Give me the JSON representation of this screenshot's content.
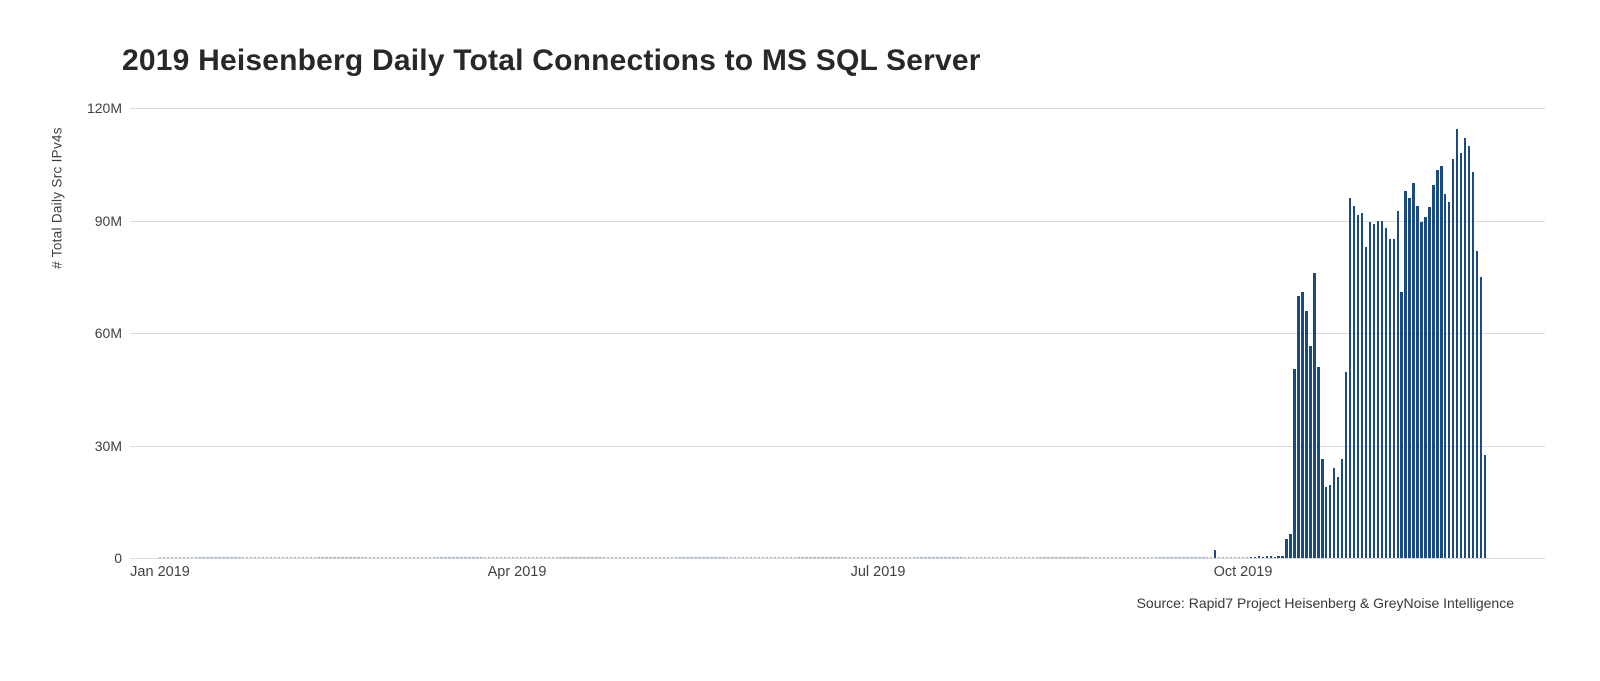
{
  "title": "2019 Heisenberg Daily Total Connections to MS SQL Server",
  "source": "Source: Rapid7 Project Heisenberg & GreyNoise Intelligence",
  "y_axis": {
    "label": "# Total Daily Src IPv4s",
    "ticks": [
      {
        "label": "0",
        "value": 0
      },
      {
        "label": "30M",
        "value": 30
      },
      {
        "label": "60M",
        "value": 60
      },
      {
        "label": "90M",
        "value": 90
      },
      {
        "label": "120M",
        "value": 120
      }
    ]
  },
  "x_axis": {
    "ticks": [
      {
        "label": "Jan 2019",
        "day": 0
      },
      {
        "label": "Apr 2019",
        "day": 90
      },
      {
        "label": "Jul 2019",
        "day": 181
      },
      {
        "label": "Oct 2019",
        "day": 273
      }
    ]
  },
  "colors": {
    "bar": "#1b4a7e",
    "grid": "#d9d9d9",
    "tick_text": "#404040",
    "title_text": "#282828"
  },
  "chart_data": {
    "type": "bar",
    "title": "2019 Heisenberg Daily Total Connections to MS SQL Server",
    "xlabel": "",
    "ylabel": "# Total Daily Src IPv4s",
    "unit": "millions of source IPv4s per day",
    "ylim": [
      0,
      120
    ],
    "y_tick_labels": [
      "0",
      "30M",
      "60M",
      "90M",
      "120M"
    ],
    "x_tick_labels": [
      "Jan 2019",
      "Apr 2019",
      "Jul 2019",
      "Oct 2019"
    ],
    "grid": "horizontal-only",
    "legend": "none",
    "source": "Source: Rapid7 Project Heisenberg & GreyNoise Intelligence",
    "baseline": {
      "note": "near-zero daily totals Jan through late Sep 2019, drawn as faint hairline marks",
      "day_range": [
        0,
        274
      ],
      "value_m": 0.15
    },
    "isolated_blip": {
      "note": "single small bar in late Sep 2019",
      "day_of_year": 266,
      "value_m": 2.2
    },
    "small_run": {
      "note": "barely visible daily bars in early Oct 2019",
      "start_day_of_year": 275,
      "values_m": [
        0.4,
        0.4,
        0.5,
        0.4,
        0.5,
        0.5,
        0.4,
        0.5,
        0.6
      ]
    },
    "spike": {
      "note": "large scanning spike mid-Oct through Dec 1 2019, peak ~114.5M",
      "start_day_of_year": 284,
      "values_m": [
        5,
        6.5,
        50.5,
        70,
        71,
        66,
        56.5,
        76,
        51,
        26.5,
        19,
        19.5,
        24,
        21.5,
        26.5,
        49.5,
        96,
        94,
        91.5,
        92,
        83,
        89.5,
        89,
        90,
        90,
        88,
        85,
        85,
        92.5,
        71,
        98,
        96,
        100,
        94,
        89.5,
        91,
        93.5,
        99.5,
        103.5,
        104.5,
        97,
        95,
        106.5,
        114.5,
        108,
        112,
        110,
        103,
        82,
        75,
        27.5
      ]
    }
  }
}
